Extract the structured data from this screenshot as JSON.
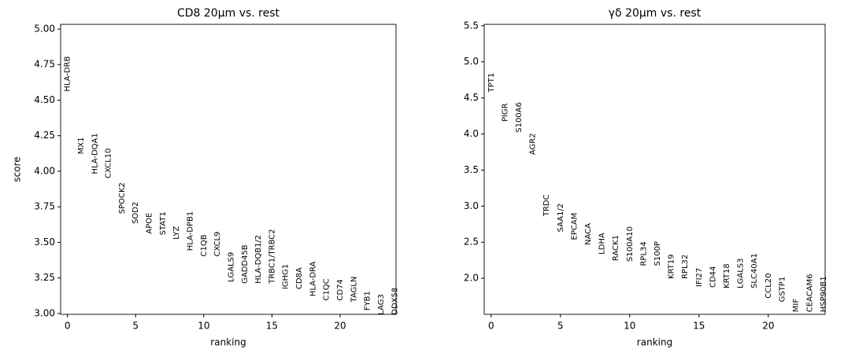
{
  "chart_data": [
    {
      "type": "scatter",
      "title": "CD8 20µm vs. rest",
      "xlabel": "ranking",
      "ylabel": "score",
      "x": [
        0,
        1,
        2,
        3,
        4,
        5,
        6,
        7,
        8,
        9,
        10,
        11,
        12,
        13,
        14,
        15,
        16,
        17,
        18,
        19,
        20,
        21,
        22,
        23,
        24
      ],
      "labels": [
        "HLA-DRB",
        "MX1",
        "HLA-DQA1",
        "CXCL10",
        "SPOCK2",
        "SOD2",
        "APOE",
        "STAT1",
        "LYZ",
        "HLA-DPB1",
        "C1QB",
        "CXCL9",
        "LGALS9",
        "GADD45B",
        "HLA-DQB1/2",
        "TRBC1/TRBC2",
        "IGHG1",
        "CD8A",
        "HLA-DRA",
        "C1QC",
        "CD74",
        "TAGLN",
        "FYB1",
        "LAG3",
        "DDX58"
      ],
      "values": [
        4.56,
        4.12,
        3.98,
        3.95,
        3.7,
        3.63,
        3.56,
        3.55,
        3.52,
        3.44,
        3.4,
        3.4,
        3.22,
        3.21,
        3.21,
        3.21,
        3.17,
        3.17,
        3.12,
        3.09,
        3.09,
        3.08,
        3.02,
        2.99,
        2.99
      ],
      "xlim": [
        -0.5,
        24.1
      ],
      "ylim": [
        2.994,
        5.033
      ],
      "xticks": [
        0,
        5,
        10,
        15,
        20
      ],
      "yticks": [
        {
          "value": 3,
          "label": "3.00"
        },
        3.25,
        {
          "value": 3.5,
          "label": "3.50"
        },
        3.75,
        {
          "value": 4,
          "label": "4.00"
        },
        4.25,
        {
          "value": 4.5,
          "label": "4.50"
        },
        4.75,
        {
          "value": 5,
          "label": "5.00"
        }
      ]
    },
    {
      "type": "scatter",
      "title": "γδ 20µm vs. rest",
      "xlabel": "ranking",
      "x": [
        0,
        1,
        2,
        3,
        4,
        5,
        6,
        7,
        8,
        9,
        10,
        11,
        12,
        13,
        14,
        15,
        16,
        17,
        18,
        19,
        20,
        21,
        22,
        23,
        24
      ],
      "labels": [
        "TPT1",
        "PIGR",
        "S100A6",
        "AGR2",
        "TRDC",
        "SAA1/2",
        "EPCAM",
        "NACA",
        "LDHA",
        "RACK1",
        "S100A10",
        "RPL34",
        "S100P",
        "KRT19",
        "RPL32",
        "IFI27",
        "CD44",
        "KRT18",
        "LGALS3",
        "SLC40A1",
        "CCL20",
        "GSTP1",
        "MIF",
        "CEACAM6",
        "HSP90B1"
      ],
      "values": [
        4.58,
        4.17,
        4.02,
        3.71,
        2.86,
        2.64,
        2.53,
        2.46,
        2.33,
        2.24,
        2.23,
        2.17,
        2.17,
        1.99,
        1.99,
        1.88,
        1.87,
        1.86,
        1.86,
        1.86,
        1.72,
        1.67,
        1.53,
        1.53,
        1.53
      ],
      "xlim": [
        -0.5,
        24.1
      ],
      "ylim": [
        1.5,
        5.52
      ],
      "xticks": [
        0,
        5,
        10,
        15,
        20
      ],
      "yticks": [
        {
          "value": 2,
          "label": "2.0"
        },
        2.5,
        {
          "value": 3,
          "label": "3.0"
        },
        3.5,
        {
          "value": 4,
          "label": "4.0"
        },
        4.5,
        {
          "value": 5,
          "label": "5.0"
        },
        5.5
      ]
    }
  ]
}
